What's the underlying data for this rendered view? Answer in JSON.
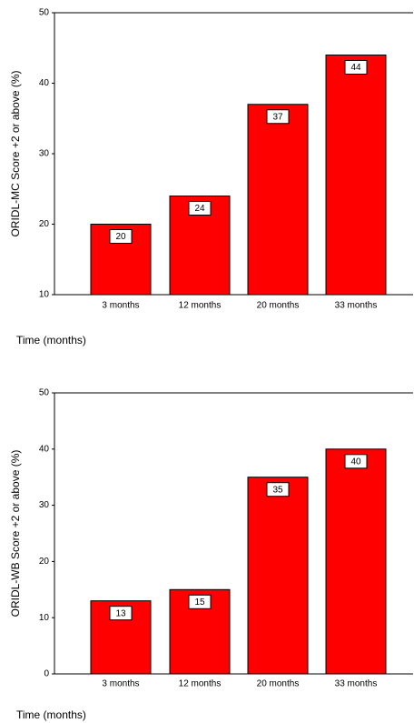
{
  "chart_data": [
    {
      "type": "bar",
      "categories": [
        "3 months",
        "12 months",
        "20 months",
        "33 months"
      ],
      "values": [
        20,
        24,
        37,
        44
      ],
      "color": "#ff0000",
      "ylim": [
        10,
        50
      ],
      "yticks": [
        10,
        20,
        30,
        40,
        50
      ],
      "y_label": "ORIDL-MC Score +2 or above (%)",
      "x_label": "Time (months)"
    },
    {
      "type": "bar",
      "categories": [
        "3 months",
        "12 months",
        "20 months",
        "33 months"
      ],
      "values": [
        13,
        15,
        35,
        40
      ],
      "color": "#ff0000",
      "ylim": [
        0,
        50
      ],
      "yticks": [
        0,
        10,
        20,
        30,
        40,
        50
      ],
      "y_label": "ORIDL-WB Score +2 or above (%)",
      "x_label": "Time (months)"
    }
  ]
}
